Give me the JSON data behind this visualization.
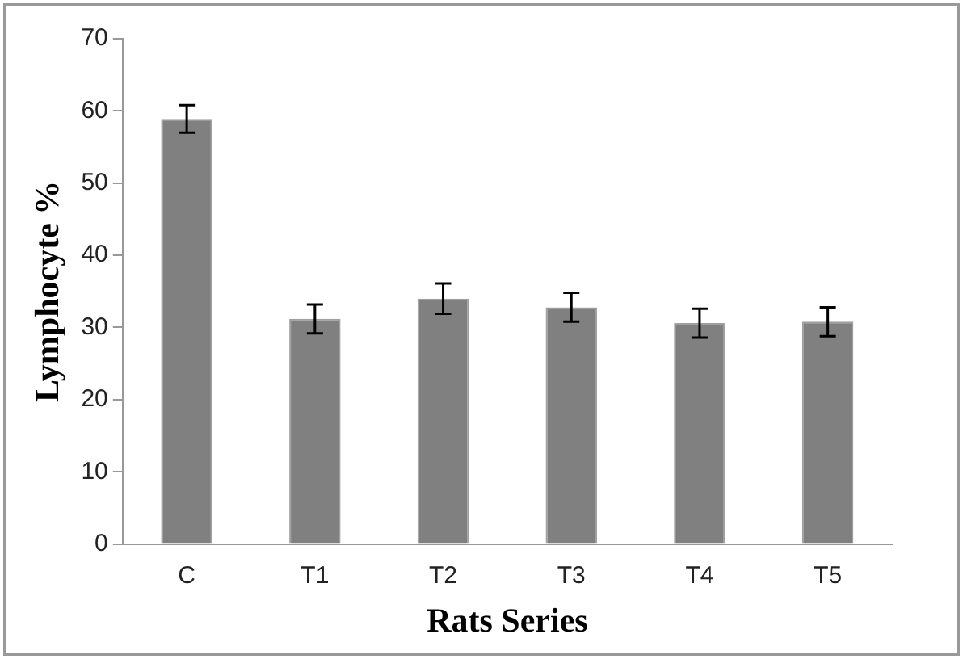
{
  "chart_data": {
    "type": "bar",
    "xlabel": "Rats Series",
    "ylabel": "Lymphocyte %",
    "categories": [
      "C",
      "T1",
      "T2",
      "T3",
      "T4",
      "T5"
    ],
    "values": [
      58.9,
      31.2,
      34.0,
      32.8,
      30.6,
      30.8
    ],
    "errors": [
      1.9,
      2,
      2.1,
      2,
      2,
      2
    ],
    "color": "#808080",
    "ylim": [
      0,
      70
    ],
    "yticks": [
      0,
      10,
      20,
      30,
      40,
      50,
      60,
      70
    ],
    "grid": false,
    "legend": false
  }
}
